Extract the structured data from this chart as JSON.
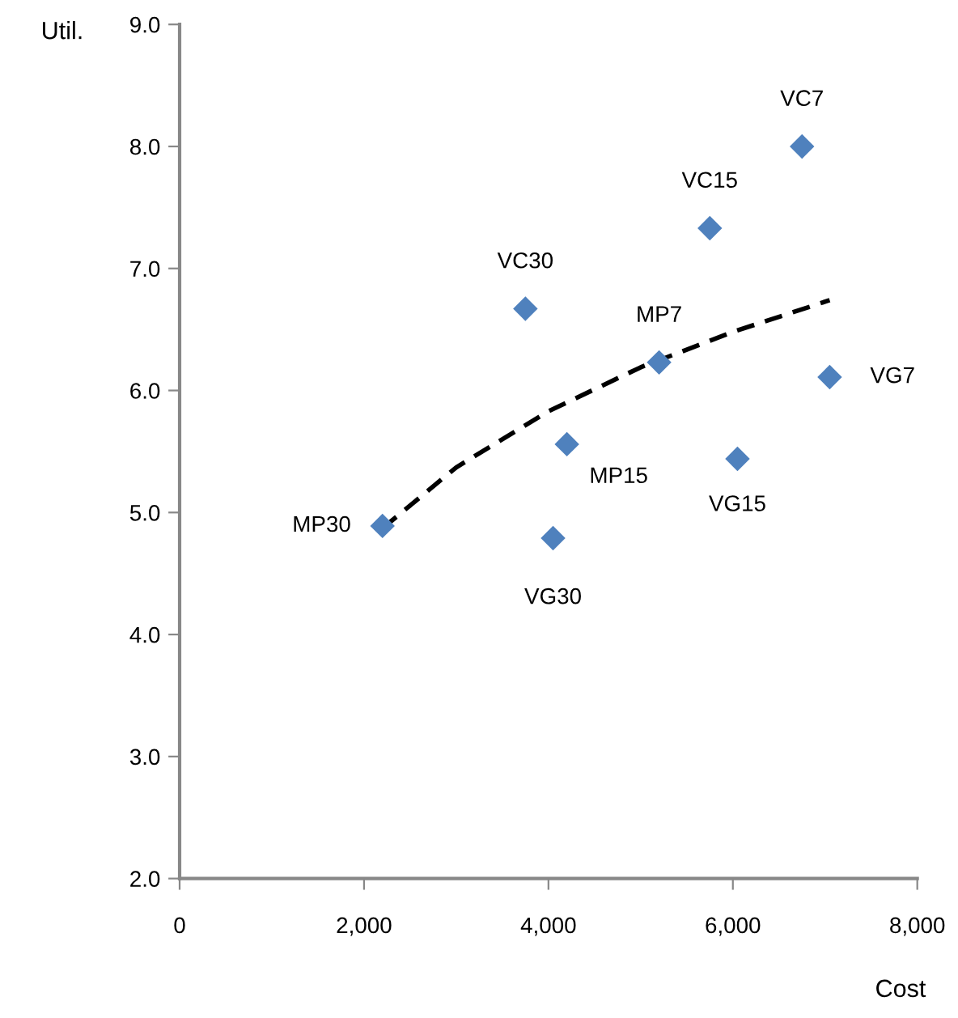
{
  "chart_data": {
    "type": "scatter",
    "xlabel": "Cost",
    "ylabel": "Util.",
    "xlim": [
      0,
      8000
    ],
    "xticks": [
      {
        "value": 0,
        "label": "0"
      },
      {
        "value": 2000,
        "label": "2,000"
      },
      {
        "value": 4000,
        "label": "4,000"
      },
      {
        "value": 6000,
        "label": "6,000"
      },
      {
        "value": 8000,
        "label": "8,000"
      }
    ],
    "ylim": [
      2,
      9
    ],
    "yticks": [
      {
        "value": 2,
        "label": "2.0"
      },
      {
        "value": 3,
        "label": "3.0"
      },
      {
        "value": 4,
        "label": "4.0"
      },
      {
        "value": 5,
        "label": "5.0"
      },
      {
        "value": 6,
        "label": "6.0"
      },
      {
        "value": 7,
        "label": "7.0"
      },
      {
        "value": 8,
        "label": "8.0"
      },
      {
        "value": 9,
        "label": "9.0"
      }
    ],
    "grid": false,
    "legend": false,
    "marker": "diamond",
    "series": [
      {
        "color": "#4f81bd",
        "x": [
          6750,
          5750,
          3750,
          5200,
          7050,
          4200,
          6050,
          2200,
          4050
        ],
        "values": [
          8.0,
          7.33,
          6.67,
          6.23,
          6.11,
          5.56,
          5.44,
          4.89,
          4.79
        ]
      },
      {
        "type": "line",
        "color": "#000000",
        "line_style": "dashed",
        "marker": "none",
        "x": [
          2200,
          3000,
          4000,
          5000,
          6000,
          7050
        ],
        "values": [
          4.87,
          5.37,
          5.83,
          6.19,
          6.48,
          6.74
        ]
      }
    ],
    "annotations": [
      {
        "text": "VC7",
        "x": 6750,
        "y": 8.0
      },
      {
        "text": "VC15",
        "x": 5750,
        "y": 7.33
      },
      {
        "text": "VC30",
        "x": 3750,
        "y": 6.67
      },
      {
        "text": "MP7",
        "x": 5200,
        "y": 6.23
      },
      {
        "text": "VG7",
        "x": 7050,
        "y": 6.11
      },
      {
        "text": "MP15",
        "x": 4200,
        "y": 5.56
      },
      {
        "text": "VG15",
        "x": 6050,
        "y": 5.44
      },
      {
        "text": "MP30",
        "x": 2200,
        "y": 4.89
      },
      {
        "text": "VG30",
        "x": 4050,
        "y": 4.79
      }
    ]
  }
}
